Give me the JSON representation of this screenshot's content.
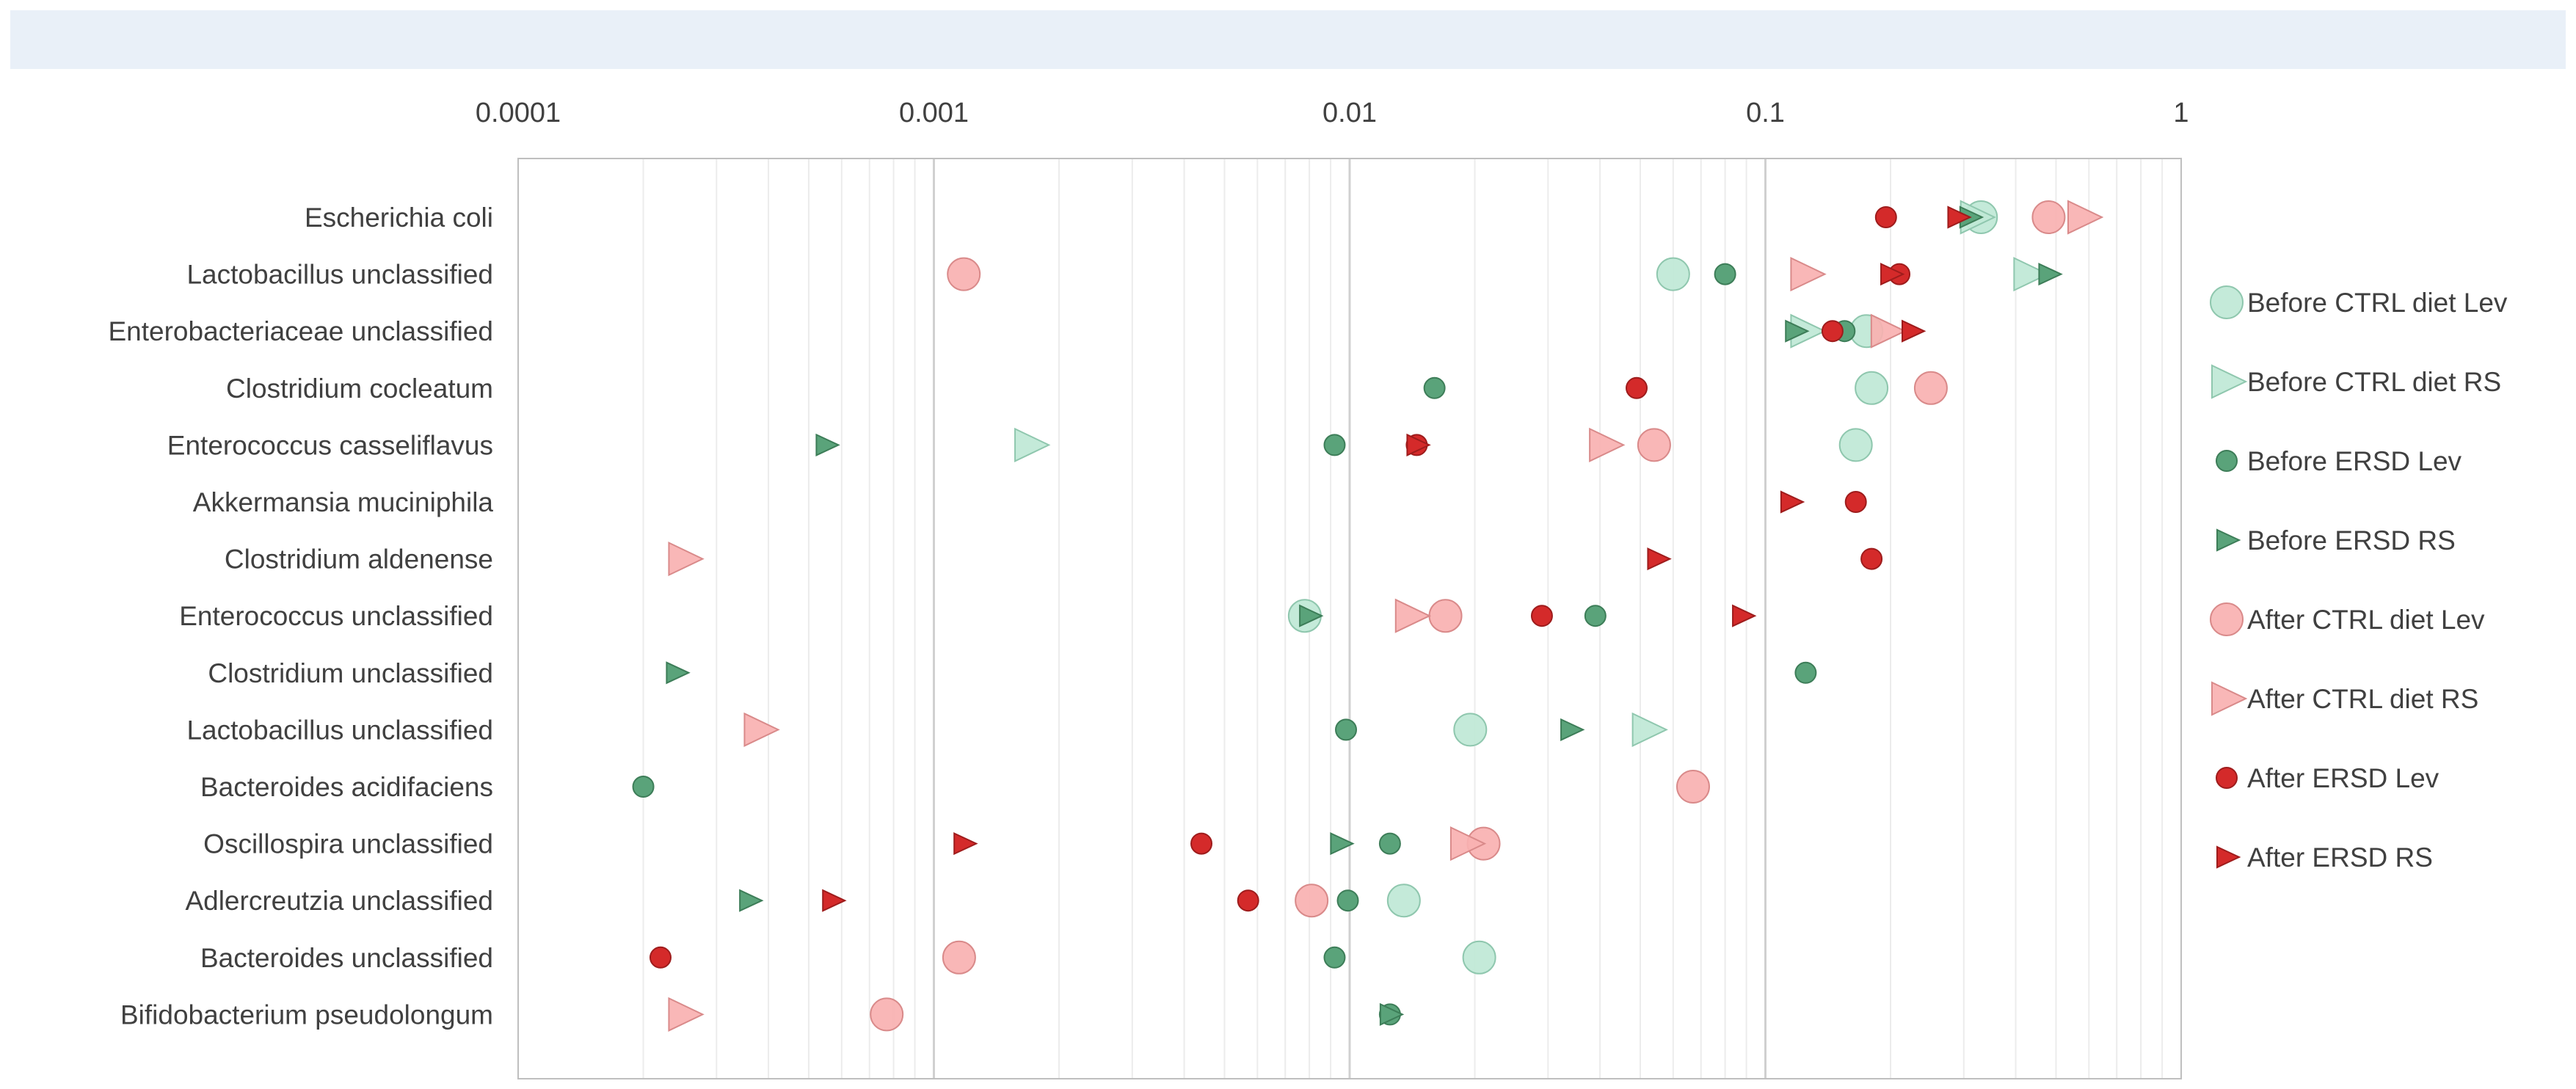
{
  "chart_data": {
    "type": "scatter",
    "x_scale": "log",
    "xlim": [
      0.0001,
      1
    ],
    "x_ticks": [
      "0.0001",
      "0.001",
      "0.01",
      "0.1",
      "1"
    ],
    "categories": [
      "Escherichia coli",
      "Lactobacillus unclassified",
      "Enterobacteriaceae unclassified",
      "Clostridium cocleatum",
      "Enterococcus casseliflavus",
      "Akkermansia muciniphila",
      "Clostridium aldenense",
      "Enterococcus unclassified",
      "Clostridium unclassified",
      "Lactobacillus unclassified",
      "Bacteroides acidifaciens",
      "Oscillospira unclassified",
      "Adlercreutzia unclassified",
      "Bacteroides unclassified",
      "Bifidobacterium pseudolongum"
    ],
    "grid": true,
    "legend_position": "right",
    "series": [
      {
        "name": "Before CTRL diet Lev",
        "marker": "circle-large",
        "color": "#bfe8d6",
        "stroke": "#8fc7ae",
        "values": [
          0.33,
          0.06,
          0.175,
          0.18,
          0.165,
          null,
          null,
          0.0078,
          null,
          0.0195,
          null,
          null,
          0.0135,
          0.0205,
          null
        ]
      },
      {
        "name": "Before CTRL diet RS",
        "marker": "triangle-large",
        "color": "#bfe8d6",
        "stroke": "#8fc7ae",
        "values": [
          0.32,
          0.43,
          0.125,
          null,
          0.0017,
          null,
          null,
          null,
          null,
          0.052,
          null,
          null,
          null,
          null,
          null
        ]
      },
      {
        "name": "Before ERSD Lev",
        "marker": "circle-small",
        "color": "#5aa37a",
        "stroke": "#3d7d58",
        "values": [
          null,
          0.08,
          0.155,
          0.016,
          0.0092,
          null,
          null,
          0.039,
          0.125,
          0.0098,
          0.0002,
          0.0125,
          0.0099,
          0.0092,
          0.0125
        ]
      },
      {
        "name": "Before ERSD RS",
        "marker": "triangle-small",
        "color": "#5aa37a",
        "stroke": "#3d7d58",
        "values": [
          0.31,
          0.48,
          0.118,
          null,
          0.00055,
          null,
          null,
          0.008,
          0.00024,
          0.034,
          null,
          0.0095,
          0.00036,
          null,
          0.0125
        ]
      },
      {
        "name": "After CTRL diet Lev",
        "marker": "circle-large",
        "color": "#f9b1b1",
        "stroke": "#d98a8a",
        "values": [
          0.48,
          0.00118,
          null,
          0.25,
          0.054,
          null,
          null,
          0.017,
          null,
          null,
          0.067,
          0.021,
          0.0081,
          0.00115,
          0.00077
        ]
      },
      {
        "name": "After CTRL diet RS",
        "marker": "triangle-large",
        "color": "#f9b1b1",
        "stroke": "#d98a8a",
        "values": [
          0.58,
          0.125,
          0.195,
          null,
          0.041,
          null,
          0.00025,
          0.014,
          null,
          0.00038,
          null,
          0.019,
          null,
          null,
          0.00025
        ]
      },
      {
        "name": "After ERSD Lev",
        "marker": "circle-small",
        "color": "#d42a2a",
        "stroke": "#9e1c1c",
        "values": [
          0.195,
          0.21,
          0.145,
          0.049,
          0.0145,
          0.165,
          0.18,
          0.029,
          null,
          null,
          null,
          0.0044,
          0.0057,
          0.00022,
          null
        ]
      },
      {
        "name": "After ERSD RS",
        "marker": "triangle-small",
        "color": "#d42a2a",
        "stroke": "#9e1c1c",
        "values": [
          0.29,
          0.2,
          0.225,
          null,
          0.0145,
          0.115,
          0.055,
          0.088,
          null,
          null,
          null,
          0.00118,
          0.00057,
          null,
          null
        ]
      }
    ]
  }
}
